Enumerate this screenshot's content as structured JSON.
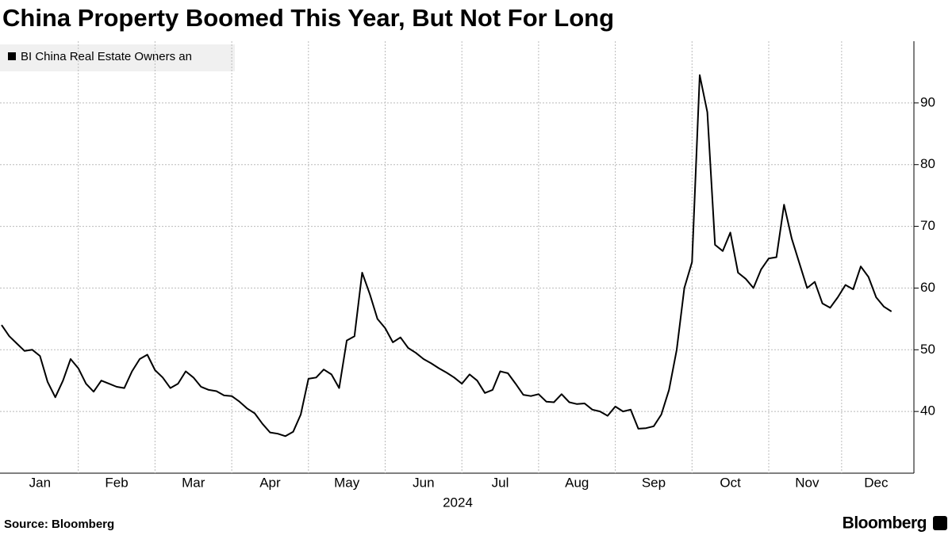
{
  "chart_data": {
    "type": "line",
    "title": "China Property Boomed This Year, But Not For Long",
    "source": "Source: Bloomberg",
    "logo": "Bloomberg",
    "xlabel": "2024",
    "categories": [
      null,
      null,
      null,
      null,
      null,
      "Jan",
      null,
      null,
      null,
      null,
      null,
      null,
      null,
      null,
      null,
      "Feb",
      null,
      null,
      null,
      null,
      null,
      null,
      null,
      null,
      null,
      "Mar",
      null,
      null,
      null,
      null,
      null,
      null,
      null,
      null,
      null,
      "Apr",
      null,
      null,
      null,
      null,
      null,
      null,
      null,
      null,
      null,
      "May",
      null,
      null,
      null,
      null,
      null,
      null,
      null,
      null,
      null,
      "Jun",
      null,
      null,
      null,
      null,
      null,
      null,
      null,
      null,
      null,
      "Jul",
      null,
      null,
      null,
      null,
      null,
      null,
      null,
      null,
      null,
      "Aug",
      null,
      null,
      null,
      null,
      null,
      null,
      null,
      null,
      null,
      "Sep",
      null,
      null,
      null,
      null,
      null,
      null,
      null,
      null,
      null,
      "Oct",
      null,
      null,
      null,
      null,
      null,
      null,
      null,
      null,
      null,
      "Nov",
      null,
      null,
      null,
      null,
      null,
      null,
      null,
      null,
      "Dec",
      null,
      null
    ],
    "series": [
      {
        "name": "BI China Real Estate Owners an",
        "color": "#000000",
        "values": [
          54,
          52.2,
          51,
          49.8,
          50,
          49,
          44.8,
          42.3,
          45,
          48.5,
          47,
          44.5,
          43.2,
          45,
          44.5,
          44,
          43.8,
          46.5,
          48.5,
          49.2,
          46.7,
          45.5,
          43.8,
          44.5,
          46.5,
          45.5,
          44,
          43.5,
          43.3,
          42.6,
          42.5,
          41.6,
          40.5,
          39.7,
          38,
          36.6,
          36.4,
          36,
          36.7,
          39.5,
          45.3,
          45.5,
          46.8,
          46,
          43.8,
          51.5,
          52.2,
          62.5,
          59,
          55,
          53.5,
          51.2,
          52,
          50.3,
          49.5,
          48.5,
          47.8,
          47,
          46.3,
          45.5,
          44.5,
          46,
          45,
          43,
          43.5,
          46.5,
          46.2,
          44.5,
          42.7,
          42.5,
          42.8,
          41.6,
          41.5,
          42.8,
          41.5,
          41.2,
          41.3,
          40.3,
          40,
          39.3,
          40.8,
          40,
          40.3,
          37.2,
          37.3,
          37.6,
          39.5,
          43.5,
          50,
          60,
          64.2,
          94.5,
          88.5,
          67,
          66,
          69,
          62.5,
          61.5,
          60,
          63,
          64.8,
          65,
          73.5,
          68,
          64,
          60,
          61,
          57.5,
          56.8,
          58.5,
          60.5,
          59.8,
          63.5,
          61.8,
          58.5,
          57,
          56.2
        ]
      }
    ],
    "ylim": [
      30,
      100
    ],
    "yticks": [
      40,
      50,
      60,
      70,
      80,
      90
    ],
    "grid": true
  }
}
